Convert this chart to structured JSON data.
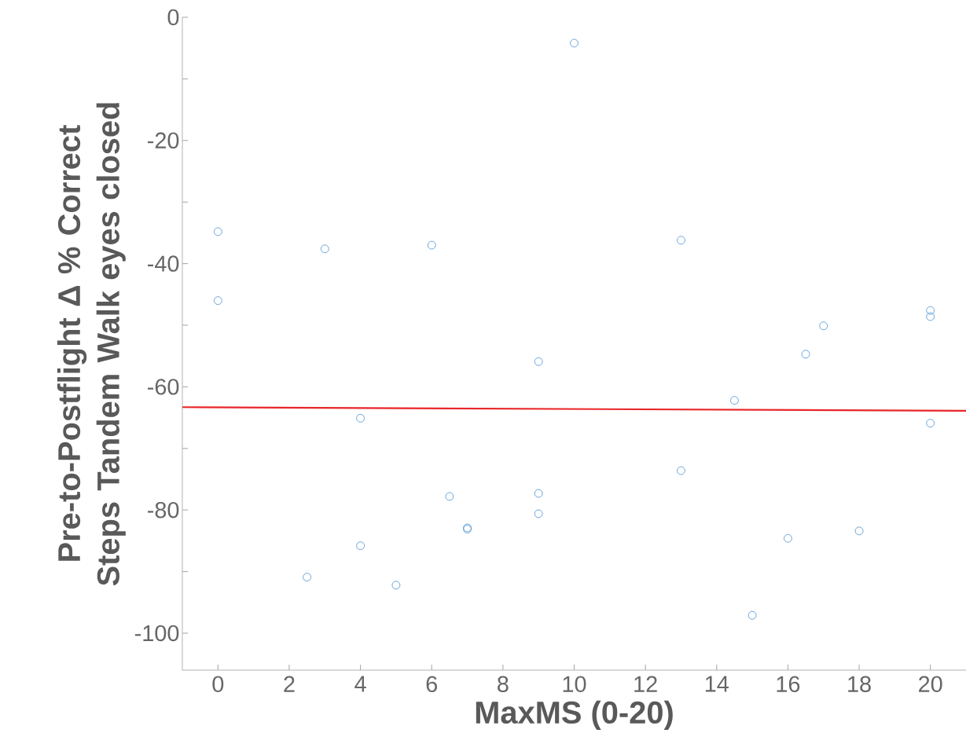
{
  "chart_data": {
    "type": "scatter",
    "xlabel": "MaxMS (0-20)",
    "ylabel": "Pre-to-Postflight Δ % Correct Steps Tandem Walk eyes closed",
    "xlim": [
      -1,
      21
    ],
    "ylim": [
      -106,
      0
    ],
    "xticks": [
      0,
      2,
      4,
      6,
      8,
      10,
      12,
      14,
      16,
      18,
      20
    ],
    "yticks": [
      -100,
      {
        "value": -90,
        "label": null
      },
      -80,
      {
        "value": -70,
        "label": null
      },
      -60,
      {
        "value": -50,
        "label": null
      },
      -40,
      {
        "value": -30,
        "label": null
      },
      -20,
      {
        "value": -10,
        "label": null
      },
      0
    ],
    "series": [
      {
        "color": "#5b9bd5",
        "marker": "circle",
        "x": [
          0,
          0,
          3,
          6,
          10,
          13,
          20,
          20,
          17,
          16.5,
          9,
          14.5,
          20,
          4,
          13,
          6.5,
          9,
          9,
          7,
          7,
          18,
          16,
          4,
          2.5,
          5,
          15
        ],
        "values": [
          -34.8,
          -46.0,
          -37.6,
          -37.0,
          -4.2,
          -36.2,
          -47.6,
          -48.6,
          -50.1,
          -54.7,
          -55.9,
          -62.2,
          -65.9,
          -65.1,
          -73.6,
          -77.8,
          -77.3,
          -80.6,
          -82.9,
          -83.1,
          -83.4,
          -84.6,
          -85.8,
          -90.9,
          -92.2,
          -97.1
        ]
      },
      {
        "type": "line",
        "color": "#e8262a",
        "marker": "none",
        "line_style": "solid",
        "x": [
          -1,
          21
        ],
        "values": [
          -63.3,
          -63.9
        ]
      }
    ]
  }
}
